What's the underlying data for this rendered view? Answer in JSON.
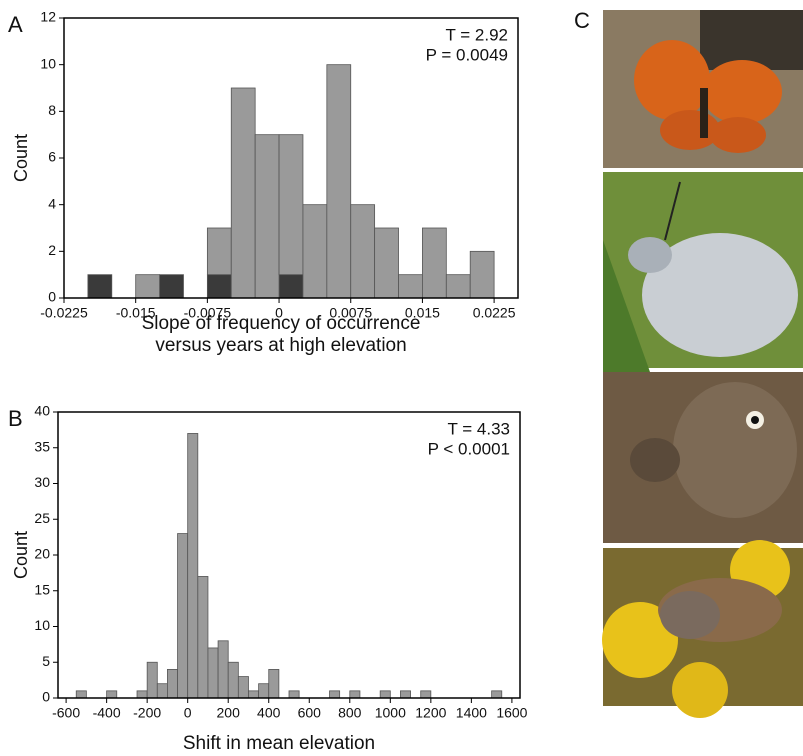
{
  "chart_data": [
    {
      "type": "histogram",
      "panel": "A",
      "ylabel": "Count",
      "xlabel": [
        "Slope of frequency of occurrence",
        "versus years at high elevation"
      ],
      "annotations": [
        "T = 2.92",
        "P = 0.0049"
      ],
      "bins": [
        -0.0225,
        -0.02,
        -0.0175,
        -0.015,
        -0.0125,
        -0.01,
        -0.0075,
        -0.005,
        -0.0025,
        0,
        0.0025,
        0.005,
        0.0075,
        0.01,
        0.0125,
        0.015,
        0.0175,
        0.02,
        0.0225,
        0.025
      ],
      "series": [
        {
          "color": "#3a3a3a",
          "values": [
            0,
            1,
            0,
            0,
            1,
            0,
            1,
            0,
            0,
            1,
            0,
            0,
            0,
            0,
            0,
            0,
            0,
            0,
            0
          ]
        },
        {
          "color": "#9a9a9a",
          "values": [
            0,
            0,
            0,
            1,
            0,
            0,
            2,
            9,
            7,
            6,
            4,
            10,
            4,
            3,
            1,
            3,
            1,
            2,
            0
          ]
        }
      ],
      "xlim": [
        -0.0225,
        0.025
      ],
      "xticks": [
        -0.0225,
        -0.015,
        -0.0075,
        0,
        0.0075,
        0.015,
        0.0225
      ],
      "ylim": [
        0,
        12
      ],
      "yticks": [
        0,
        2,
        4,
        6,
        8,
        10,
        12
      ]
    },
    {
      "type": "histogram",
      "panel": "B",
      "ylabel": "Count",
      "xlabel": [
        "Shift in mean elevation"
      ],
      "annotations": [
        "T = 4.33",
        "P < 0.0001"
      ],
      "bins": [
        -600,
        -550,
        -500,
        -450,
        -400,
        -350,
        -300,
        -250,
        -200,
        -150,
        -100,
        -50,
        0,
        50,
        100,
        150,
        200,
        250,
        300,
        350,
        400,
        450,
        500,
        550,
        600,
        650,
        700,
        750,
        800,
        850,
        900,
        950,
        1000,
        1050,
        1100,
        1150,
        1200,
        1250,
        1300,
        1350,
        1400,
        1450,
        1500,
        1550,
        1600
      ],
      "color": "#9a9a9a",
      "values": [
        0,
        1,
        0,
        0,
        1,
        0,
        0,
        1,
        5,
        2,
        4,
        23,
        37,
        17,
        7,
        8,
        5,
        3,
        1,
        2,
        4,
        0,
        1,
        0,
        0,
        0,
        1,
        0,
        1,
        0,
        0,
        1,
        0,
        1,
        0,
        1,
        0,
        0,
        0,
        0,
        0,
        0,
        1,
        0
      ],
      "xlim": [
        -640,
        1640
      ],
      "xticks": [
        -600,
        -400,
        -200,
        0,
        200,
        400,
        600,
        800,
        1000,
        1200,
        1400,
        1600
      ],
      "ylim": [
        0,
        40
      ],
      "yticks": [
        0,
        5,
        10,
        15,
        20,
        25,
        30,
        35,
        40
      ]
    }
  ],
  "panel_c": {
    "label": "C"
  }
}
